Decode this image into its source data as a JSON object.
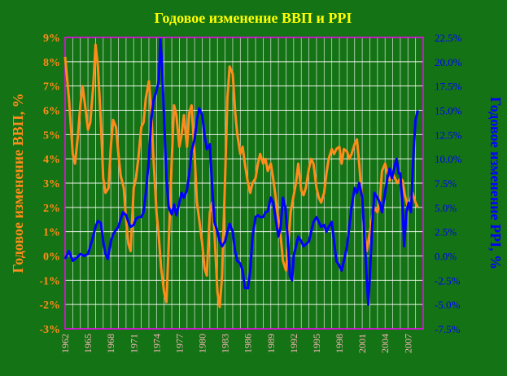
{
  "chart_data": {
    "type": "line",
    "title": "Годовое изменение ВВП и PPI",
    "left_axis": {
      "label": "Годовое изменение ВВП, %",
      "ylim": [
        -3,
        9
      ],
      "ticks": [
        "-3%",
        "-2%",
        "-1%",
        "0%",
        "1%",
        "2%",
        "3%",
        "4%",
        "5%",
        "6%",
        "7%",
        "8%",
        "9%"
      ],
      "color": "#ff8c1a"
    },
    "right_axis": {
      "label": "Годовое изменение PPI, %",
      "ylim": [
        -7.5,
        22.5
      ],
      "ticks": [
        "-7.5%",
        "-5.0%",
        "-2.5%",
        "0.0%",
        "2.5%",
        "5.0%",
        "7.5%",
        "10.0%",
        "12.5%",
        "15.0%",
        "17.5%",
        "20.0%",
        "22.5%"
      ],
      "color": "#0000ff"
    },
    "x_axis": {
      "range": [
        1962,
        2009
      ],
      "ticks": [
        "1962",
        "1965",
        "1968",
        "1971",
        "1974",
        "1977",
        "1980",
        "1983",
        "1986",
        "1989",
        "1992",
        "1995",
        "1998",
        "2001",
        "2004",
        "2007"
      ]
    },
    "grid": true,
    "colors": {
      "background": "#147314",
      "grid": "#ffffff",
      "title": "#ffff00",
      "tick_x": "#ffb6c1",
      "frame": "#ff00ff"
    },
    "series": [
      {
        "axis": "left",
        "color": "#ff8c1a",
        "points": [
          [
            1962.0,
            8.2
          ],
          [
            1962.5,
            6.5
          ],
          [
            1963.0,
            4.2
          ],
          [
            1963.3,
            3.8
          ],
          [
            1963.7,
            5.0
          ],
          [
            1964.0,
            6.2
          ],
          [
            1964.3,
            7.0
          ],
          [
            1964.7,
            6.0
          ],
          [
            1965.0,
            5.2
          ],
          [
            1965.3,
            5.5
          ],
          [
            1965.7,
            7.0
          ],
          [
            1966.0,
            8.7
          ],
          [
            1966.3,
            7.8
          ],
          [
            1966.7,
            5.5
          ],
          [
            1967.0,
            3.2
          ],
          [
            1967.3,
            2.6
          ],
          [
            1967.7,
            2.8
          ],
          [
            1968.0,
            4.5
          ],
          [
            1968.3,
            5.6
          ],
          [
            1968.7,
            5.3
          ],
          [
            1969.0,
            4.2
          ],
          [
            1969.3,
            3.3
          ],
          [
            1969.7,
            2.8
          ],
          [
            1970.0,
            1.5
          ],
          [
            1970.3,
            0.5
          ],
          [
            1970.6,
            0.2
          ],
          [
            1971.0,
            2.8
          ],
          [
            1971.3,
            3.2
          ],
          [
            1971.6,
            4.0
          ],
          [
            1972.0,
            5.3
          ],
          [
            1972.3,
            5.5
          ],
          [
            1972.6,
            6.5
          ],
          [
            1973.0,
            7.2
          ],
          [
            1973.3,
            6.0
          ],
          [
            1973.6,
            4.0
          ],
          [
            1974.0,
            1.8
          ],
          [
            1974.3,
            0.8
          ],
          [
            1974.6,
            -0.5
          ],
          [
            1975.0,
            -1.5
          ],
          [
            1975.3,
            -1.9
          ],
          [
            1975.6,
            0.5
          ],
          [
            1976.0,
            4.0
          ],
          [
            1976.3,
            6.2
          ],
          [
            1976.6,
            5.8
          ],
          [
            1977.0,
            4.5
          ],
          [
            1977.3,
            5.0
          ],
          [
            1977.6,
            5.8
          ],
          [
            1978.0,
            4.5
          ],
          [
            1978.3,
            5.9
          ],
          [
            1978.6,
            6.2
          ],
          [
            1979.0,
            4.2
          ],
          [
            1979.3,
            2.2
          ],
          [
            1979.6,
            1.5
          ],
          [
            1980.0,
            0.5
          ],
          [
            1980.3,
            -0.5
          ],
          [
            1980.6,
            -0.8
          ],
          [
            1981.0,
            1.8
          ],
          [
            1981.3,
            2.2
          ],
          [
            1981.6,
            1.0
          ],
          [
            1982.0,
            -1.5
          ],
          [
            1982.3,
            -2.1
          ],
          [
            1982.6,
            -0.8
          ],
          [
            1983.0,
            3.2
          ],
          [
            1983.3,
            6.5
          ],
          [
            1983.6,
            7.8
          ],
          [
            1984.0,
            7.5
          ],
          [
            1984.3,
            6.0
          ],
          [
            1984.6,
            5.0
          ],
          [
            1985.0,
            4.2
          ],
          [
            1985.3,
            4.5
          ],
          [
            1985.6,
            3.8
          ],
          [
            1986.0,
            3.0
          ],
          [
            1986.3,
            2.6
          ],
          [
            1986.6,
            3.0
          ],
          [
            1987.0,
            3.2
          ],
          [
            1987.3,
            3.8
          ],
          [
            1987.6,
            4.2
          ],
          [
            1988.0,
            3.8
          ],
          [
            1988.3,
            4.0
          ],
          [
            1988.6,
            3.5
          ],
          [
            1989.0,
            3.8
          ],
          [
            1989.3,
            3.2
          ],
          [
            1989.6,
            2.5
          ],
          [
            1990.0,
            1.5
          ],
          [
            1990.3,
            0.8
          ],
          [
            1990.6,
            -0.2
          ],
          [
            1991.0,
            -0.6
          ],
          [
            1991.3,
            0.5
          ],
          [
            1991.6,
            1.8
          ],
          [
            1992.0,
            2.5
          ],
          [
            1992.3,
            3.0
          ],
          [
            1992.6,
            3.8
          ],
          [
            1993.0,
            2.7
          ],
          [
            1993.3,
            2.5
          ],
          [
            1993.6,
            2.8
          ],
          [
            1994.0,
            3.6
          ],
          [
            1994.3,
            4.0
          ],
          [
            1994.6,
            3.8
          ],
          [
            1995.0,
            2.8
          ],
          [
            1995.3,
            2.4
          ],
          [
            1995.6,
            2.2
          ],
          [
            1996.0,
            2.6
          ],
          [
            1996.3,
            3.4
          ],
          [
            1996.6,
            4.0
          ],
          [
            1997.0,
            4.4
          ],
          [
            1997.3,
            4.2
          ],
          [
            1997.6,
            4.4
          ],
          [
            1998.0,
            4.5
          ],
          [
            1998.3,
            3.8
          ],
          [
            1998.6,
            4.4
          ],
          [
            1999.0,
            4.3
          ],
          [
            1999.3,
            4.0
          ],
          [
            1999.6,
            4.2
          ],
          [
            2000.0,
            4.6
          ],
          [
            2000.3,
            4.8
          ],
          [
            2000.6,
            3.8
          ],
          [
            2001.0,
            2.2
          ],
          [
            2001.3,
            1.0
          ],
          [
            2001.6,
            0.2
          ],
          [
            2002.0,
            1.0
          ],
          [
            2002.3,
            1.6
          ],
          [
            2002.6,
            2.0
          ],
          [
            2003.0,
            1.8
          ],
          [
            2003.3,
            2.2
          ],
          [
            2003.6,
            3.5
          ],
          [
            2004.0,
            3.8
          ],
          [
            2004.3,
            3.4
          ],
          [
            2004.6,
            3.1
          ],
          [
            2005.0,
            3.4
          ],
          [
            2005.3,
            3.2
          ],
          [
            2005.6,
            3.0
          ],
          [
            2006.0,
            3.2
          ],
          [
            2006.3,
            3.1
          ],
          [
            2006.6,
            2.5
          ],
          [
            2007.0,
            2.0
          ],
          [
            2007.3,
            2.3
          ],
          [
            2007.6,
            2.6
          ],
          [
            2008.0,
            2.2
          ],
          [
            2008.3,
            2.0
          ]
        ]
      },
      {
        "axis": "right",
        "color": "#0000ff",
        "points": [
          [
            1962.0,
            -0.3
          ],
          [
            1962.5,
            0.5
          ],
          [
            1963.0,
            -0.5
          ],
          [
            1963.5,
            -0.2
          ],
          [
            1964.0,
            0.2
          ],
          [
            1964.5,
            0.0
          ],
          [
            1965.0,
            0.2
          ],
          [
            1965.5,
            1.5
          ],
          [
            1966.0,
            3.0
          ],
          [
            1966.3,
            3.6
          ],
          [
            1966.7,
            3.4
          ],
          [
            1967.0,
            1.5
          ],
          [
            1967.3,
            0.2
          ],
          [
            1967.6,
            -0.3
          ],
          [
            1968.0,
            1.5
          ],
          [
            1968.3,
            2.2
          ],
          [
            1968.6,
            2.6
          ],
          [
            1969.0,
            3.0
          ],
          [
            1969.3,
            3.8
          ],
          [
            1969.6,
            4.5
          ],
          [
            1970.0,
            4.2
          ],
          [
            1970.3,
            3.5
          ],
          [
            1970.6,
            3.0
          ],
          [
            1971.0,
            3.2
          ],
          [
            1971.3,
            3.8
          ],
          [
            1971.6,
            4.0
          ],
          [
            1972.0,
            4.0
          ],
          [
            1972.3,
            4.5
          ],
          [
            1972.6,
            6.5
          ],
          [
            1973.0,
            10.0
          ],
          [
            1973.3,
            14.0
          ],
          [
            1973.6,
            16.0
          ],
          [
            1974.0,
            17.0
          ],
          [
            1974.3,
            18.0
          ],
          [
            1974.5,
            22.3
          ],
          [
            1974.7,
            20.0
          ],
          [
            1975.0,
            14.0
          ],
          [
            1975.3,
            8.0
          ],
          [
            1975.6,
            5.0
          ],
          [
            1976.0,
            4.3
          ],
          [
            1976.3,
            5.3
          ],
          [
            1976.6,
            4.2
          ],
          [
            1977.0,
            5.5
          ],
          [
            1977.3,
            6.5
          ],
          [
            1977.6,
            6.0
          ],
          [
            1978.0,
            6.8
          ],
          [
            1978.3,
            8.5
          ],
          [
            1978.6,
            10.8
          ],
          [
            1979.0,
            12.0
          ],
          [
            1979.3,
            14.0
          ],
          [
            1979.6,
            15.2
          ],
          [
            1980.0,
            14.5
          ],
          [
            1980.3,
            12.5
          ],
          [
            1980.6,
            11.0
          ],
          [
            1981.0,
            11.5
          ],
          [
            1981.3,
            7.0
          ],
          [
            1981.6,
            3.5
          ],
          [
            1982.0,
            2.5
          ],
          [
            1982.3,
            1.5
          ],
          [
            1982.6,
            1.0
          ],
          [
            1983.0,
            1.5
          ],
          [
            1983.3,
            2.5
          ],
          [
            1983.6,
            3.3
          ],
          [
            1984.0,
            2.5
          ],
          [
            1984.3,
            0.5
          ],
          [
            1984.6,
            -0.5
          ],
          [
            1985.0,
            -0.8
          ],
          [
            1985.3,
            -1.5
          ],
          [
            1985.6,
            -3.3
          ],
          [
            1986.0,
            -3.3
          ],
          [
            1986.3,
            -1.5
          ],
          [
            1986.6,
            2.0
          ],
          [
            1987.0,
            4.0
          ],
          [
            1987.3,
            4.2
          ],
          [
            1987.6,
            4.0
          ],
          [
            1988.0,
            4.0
          ],
          [
            1988.3,
            4.5
          ],
          [
            1988.6,
            4.6
          ],
          [
            1989.0,
            6.0
          ],
          [
            1989.3,
            5.5
          ],
          [
            1989.6,
            4.0
          ],
          [
            1990.0,
            2.0
          ],
          [
            1990.3,
            3.0
          ],
          [
            1990.6,
            6.0
          ],
          [
            1990.9,
            5.0
          ],
          [
            1991.2,
            2.0
          ],
          [
            1991.5,
            -2.0
          ],
          [
            1991.8,
            -2.5
          ],
          [
            1992.0,
            0.0
          ],
          [
            1992.3,
            1.0
          ],
          [
            1992.6,
            2.0
          ],
          [
            1993.0,
            1.5
          ],
          [
            1993.3,
            1.0
          ],
          [
            1993.6,
            1.2
          ],
          [
            1994.0,
            1.5
          ],
          [
            1994.3,
            2.5
          ],
          [
            1994.6,
            3.5
          ],
          [
            1995.0,
            4.0
          ],
          [
            1995.3,
            3.5
          ],
          [
            1995.6,
            3.0
          ],
          [
            1996.0,
            3.2
          ],
          [
            1996.3,
            2.5
          ],
          [
            1996.6,
            3.0
          ],
          [
            1997.0,
            3.5
          ],
          [
            1997.3,
            1.5
          ],
          [
            1997.6,
            -0.5
          ],
          [
            1998.0,
            -1.0
          ],
          [
            1998.3,
            -1.5
          ],
          [
            1998.6,
            -0.5
          ],
          [
            1999.0,
            1.0
          ],
          [
            1999.3,
            3.0
          ],
          [
            1999.6,
            5.0
          ],
          [
            2000.0,
            7.0
          ],
          [
            2000.3,
            6.5
          ],
          [
            2000.6,
            7.5
          ],
          [
            2001.0,
            6.0
          ],
          [
            2001.3,
            2.0
          ],
          [
            2001.6,
            -2.5
          ],
          [
            2001.8,
            -5.0
          ],
          [
            2002.0,
            -2.0
          ],
          [
            2002.3,
            3.0
          ],
          [
            2002.6,
            6.5
          ],
          [
            2003.0,
            6.0
          ],
          [
            2003.3,
            5.5
          ],
          [
            2003.6,
            4.5
          ],
          [
            2004.0,
            6.5
          ],
          [
            2004.3,
            8.0
          ],
          [
            2004.6,
            9.0
          ],
          [
            2004.9,
            8.0
          ],
          [
            2005.2,
            9.0
          ],
          [
            2005.5,
            10.0
          ],
          [
            2005.8,
            8.5
          ],
          [
            2006.0,
            8.5
          ],
          [
            2006.3,
            5.0
          ],
          [
            2006.5,
            1.0
          ],
          [
            2006.8,
            4.5
          ],
          [
            2007.1,
            5.5
          ],
          [
            2007.4,
            4.5
          ],
          [
            2007.7,
            10.0
          ],
          [
            2008.0,
            14.0
          ],
          [
            2008.3,
            15.0
          ]
        ]
      }
    ]
  }
}
